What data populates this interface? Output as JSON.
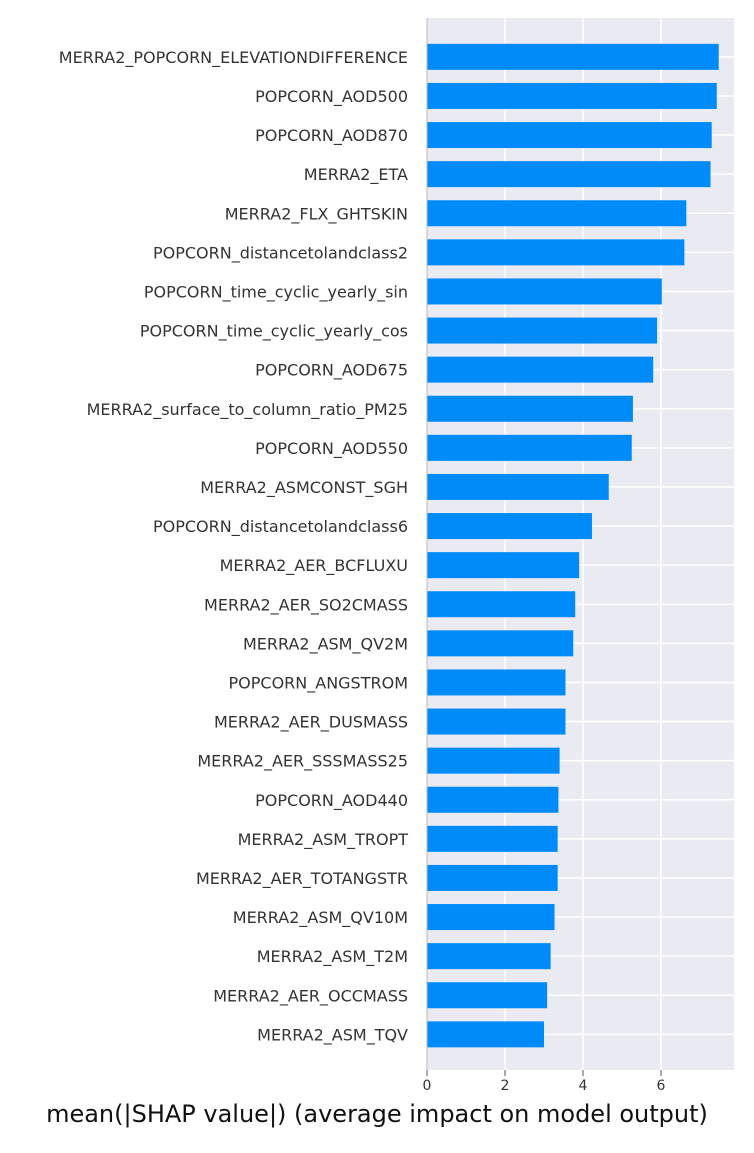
{
  "chart_data": {
    "type": "bar",
    "orientation": "horizontal",
    "categories": [
      "MERRA2_POPCORN_ELEVATIONDIFFERENCE",
      "POPCORN_AOD500",
      "POPCORN_AOD870",
      "MERRA2_ETA",
      "MERRA2_FLX_GHTSKIN",
      "POPCORN_distancetolandclass2",
      "POPCORN_time_cyclic_yearly_sin",
      "POPCORN_time_cyclic_yearly_cos",
      "POPCORN_AOD675",
      "MERRA2_surface_to_column_ratio_PM25",
      "POPCORN_AOD550",
      "MERRA2_ASMCONST_SGH",
      "POPCORN_distancetolandclass6",
      "MERRA2_AER_BCFLUXU",
      "MERRA2_AER_SO2CMASS",
      "MERRA2_ASM_QV2M",
      "POPCORN_ANGSTROM",
      "MERRA2_AER_DUSMASS",
      "MERRA2_AER_SSSMASS25",
      "POPCORN_AOD440",
      "MERRA2_ASM_TROPT",
      "MERRA2_AER_TOTANGSTR",
      "MERRA2_ASM_QV10M",
      "MERRA2_ASM_T2M",
      "MERRA2_AER_OCCMASS",
      "MERRA2_ASM_TQV"
    ],
    "values": [
      7.48,
      7.43,
      7.3,
      7.27,
      6.65,
      6.6,
      6.02,
      5.9,
      5.8,
      5.28,
      5.25,
      4.66,
      4.23,
      3.9,
      3.8,
      3.75,
      3.55,
      3.55,
      3.4,
      3.37,
      3.35,
      3.35,
      3.27,
      3.17,
      3.08,
      3.0
    ],
    "xticks": [
      0,
      2,
      4,
      6
    ],
    "xlim": [
      0,
      7.8
    ],
    "xlabel": "mean(|SHAP value|) (average impact on model output)",
    "grid": true,
    "colors": {
      "bar": "#008bfb",
      "background": "#eaeaf2",
      "grid": "#ffffff",
      "axis": "#bbbbbb"
    }
  }
}
